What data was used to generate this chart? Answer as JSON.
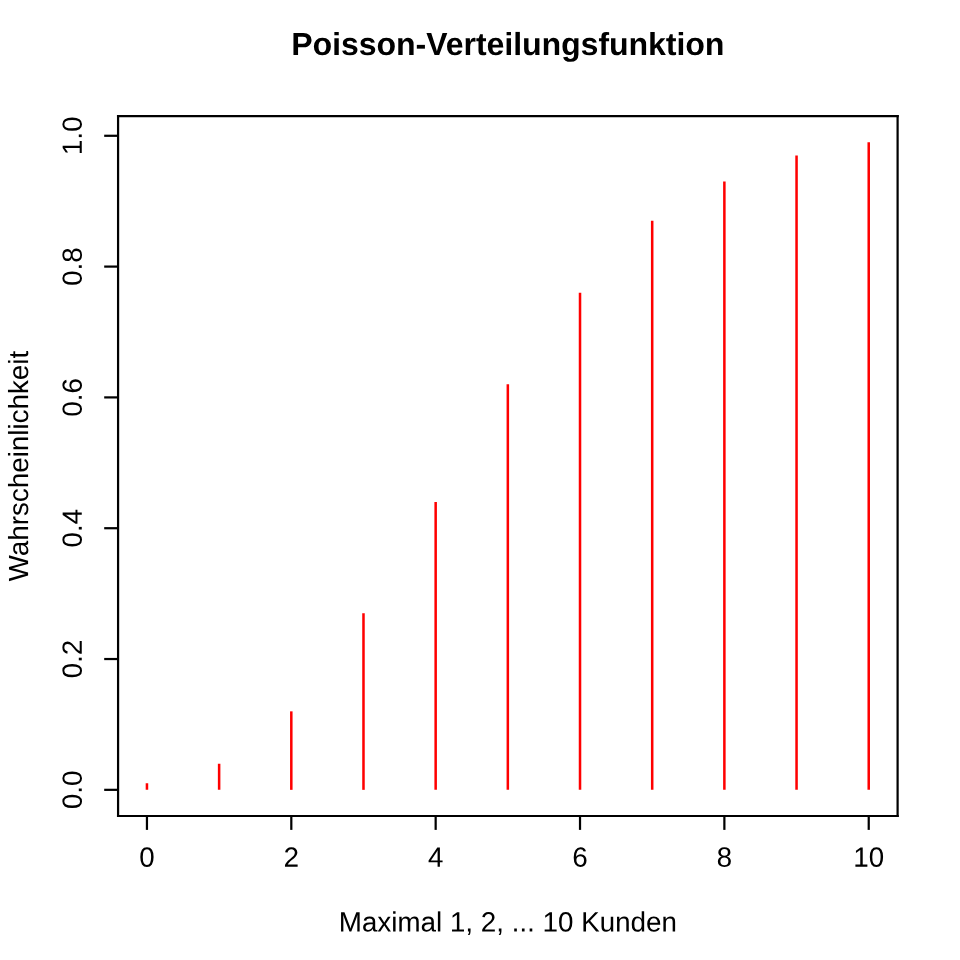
{
  "chart_data": {
    "type": "bar",
    "title": "Poisson-Verteilungsfunktion",
    "xlabel": "Maximal 1, 2, ... 10 Kunden",
    "ylabel": "Wahrscheinlichkeit",
    "x": [
      0,
      1,
      2,
      3,
      4,
      5,
      6,
      7,
      8,
      9,
      10
    ],
    "values": [
      0.01,
      0.04,
      0.12,
      0.27,
      0.44,
      0.62,
      0.76,
      0.87,
      0.93,
      0.97,
      0.99
    ],
    "color": "#ff0000",
    "xlim": [
      -0.4,
      10.4
    ],
    "xticks": [
      0,
      2,
      4,
      6,
      8,
      10
    ],
    "ylim": [
      -0.04,
      1.03
    ],
    "yticks": [
      {
        "value": 0,
        "label": "0.0"
      },
      {
        "value": 0.2,
        "label": "0.2"
      },
      {
        "value": 0.4,
        "label": "0.4"
      },
      {
        "value": 0.6,
        "label": "0.6"
      },
      {
        "value": 0.8,
        "label": "0.8"
      },
      {
        "value": 1,
        "label": "1.0"
      }
    ]
  }
}
